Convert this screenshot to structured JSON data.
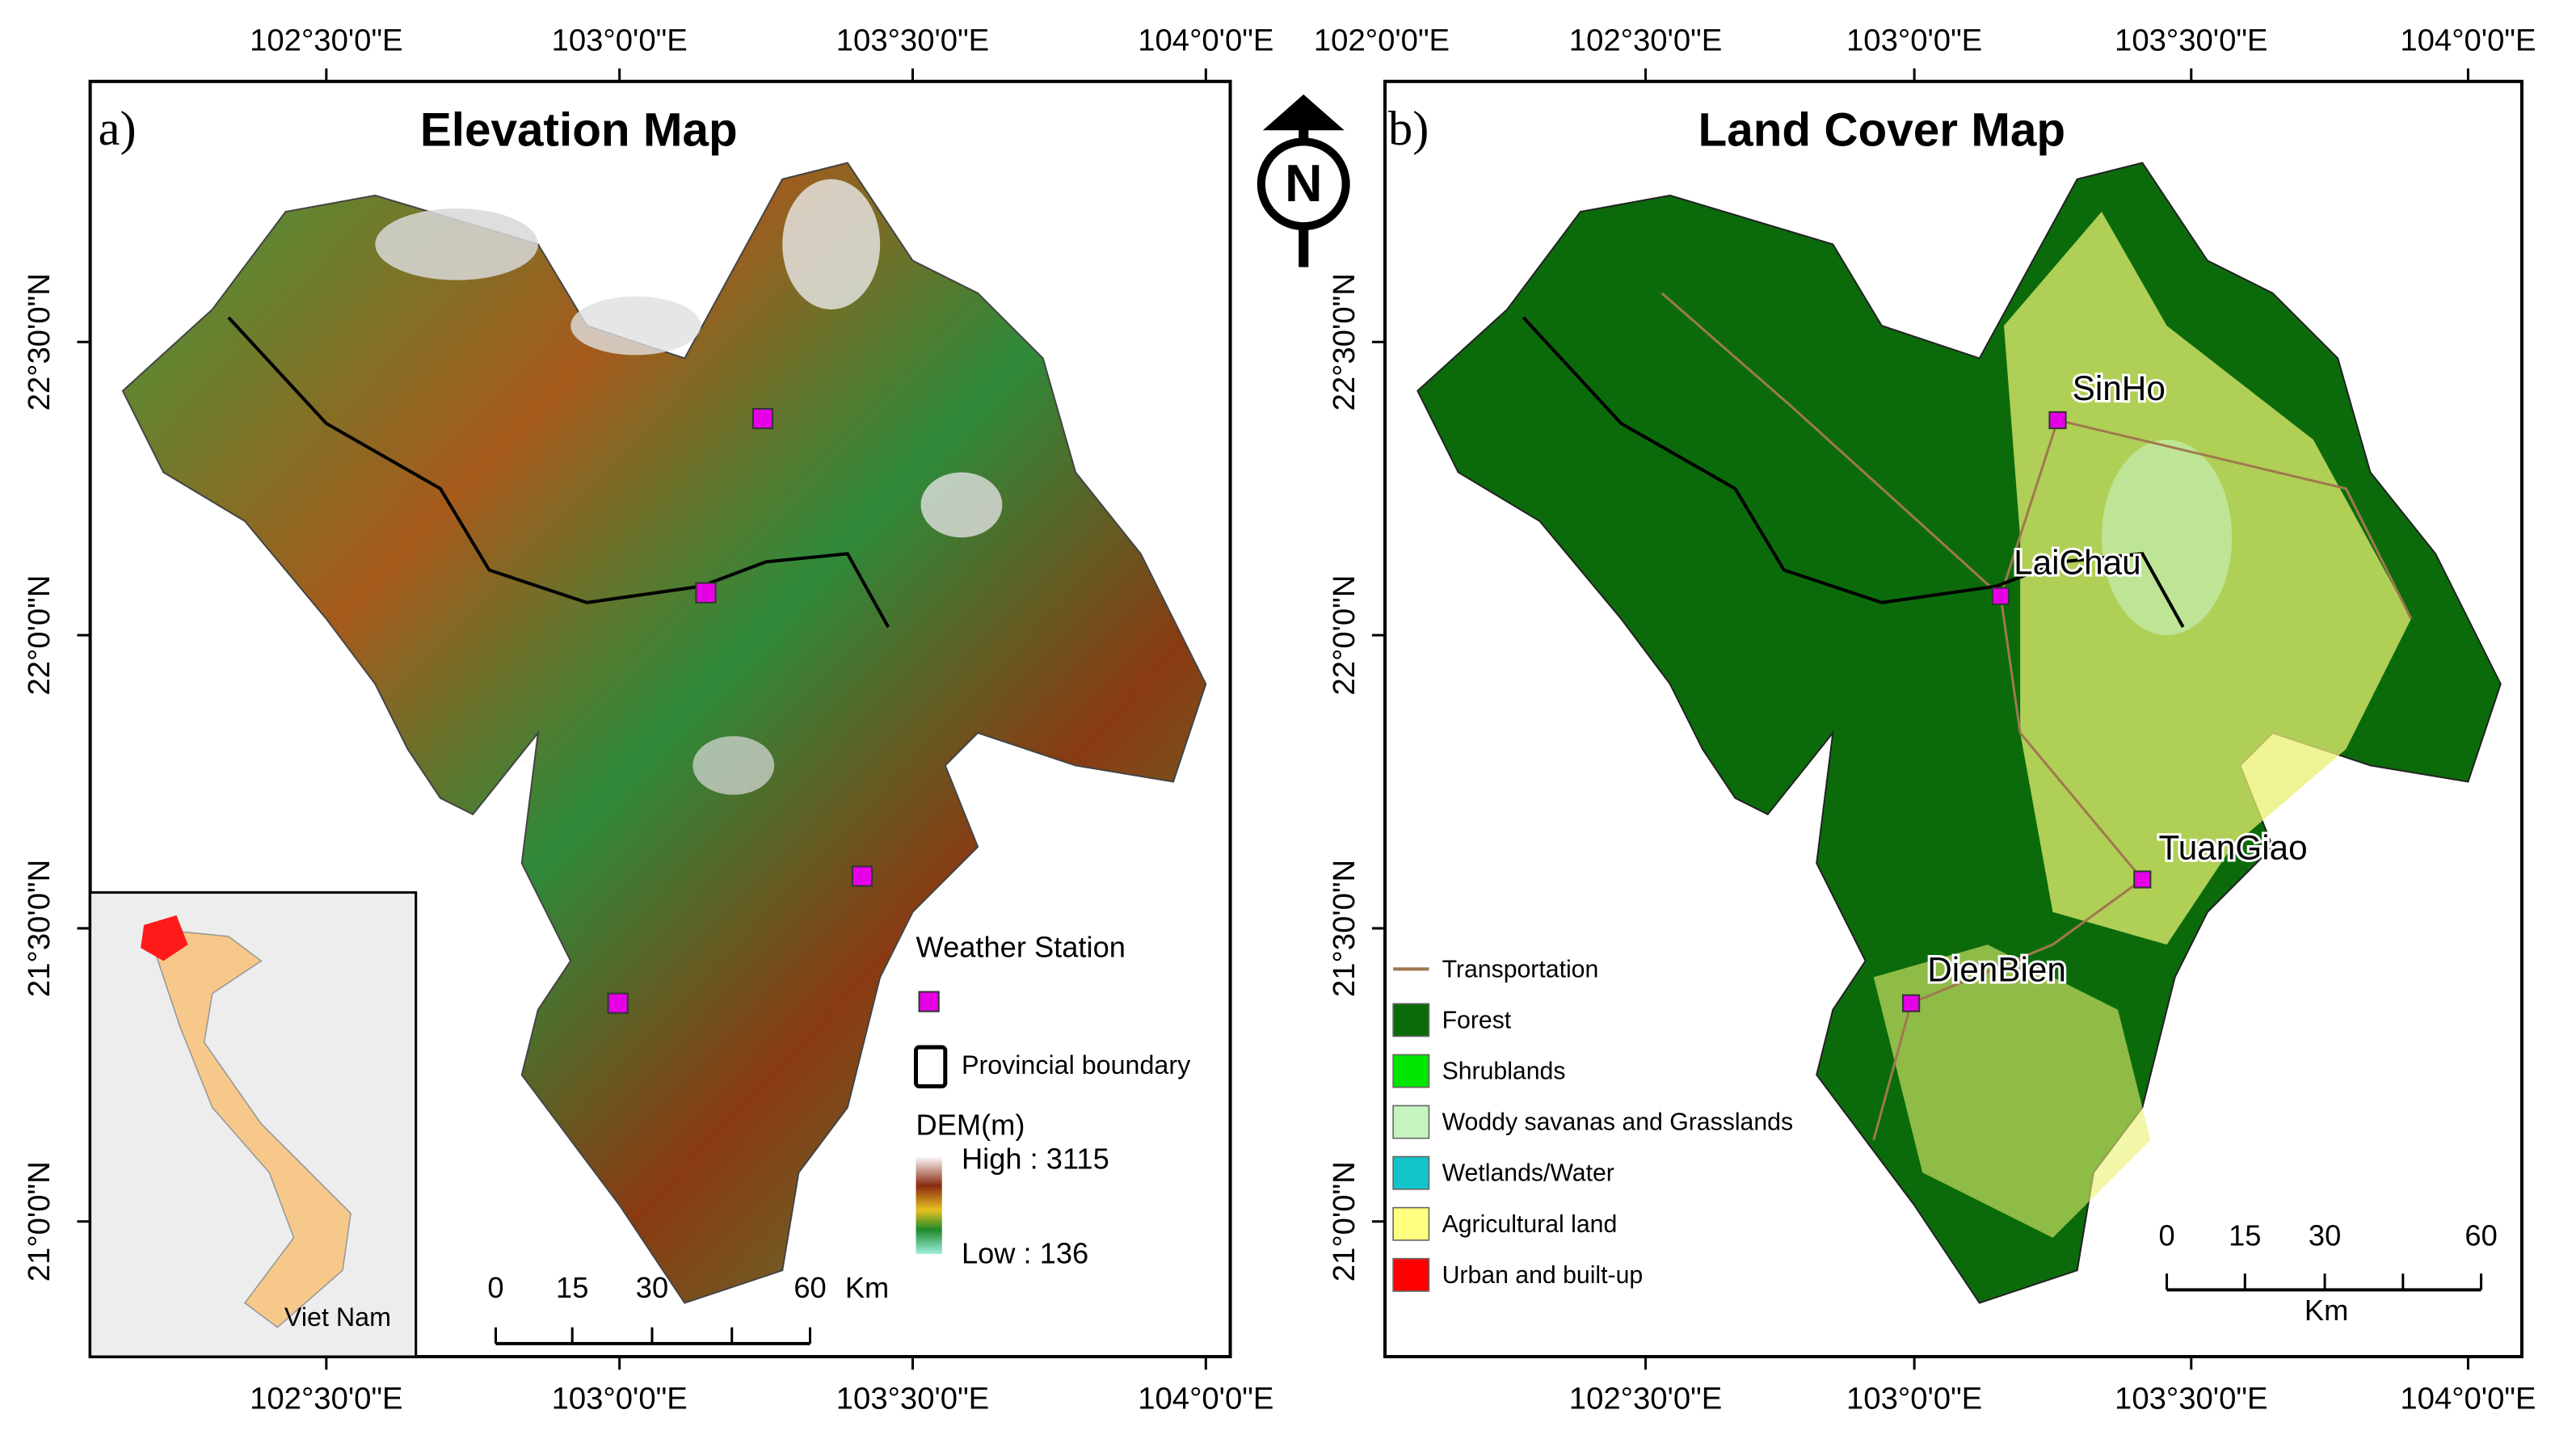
{
  "north": "N",
  "panels": [
    {
      "label": "a)",
      "title": "Elevation Map",
      "top_ticks": [
        "102°30'0\"E",
        "103°0'0\"E",
        "103°30'0\"E",
        "104°0'0\"E"
      ],
      "bottom_ticks": [
        "102°30'0\"E",
        "103°0'0\"E",
        "103°30'0\"E",
        "104°0'0\"E"
      ],
      "side_ticks": [
        "22°30'0\"N",
        "22°0'0\"N",
        "21°30'0\"N",
        "21°0'0\"N"
      ],
      "legend": {
        "station": "Weather Station",
        "boundary": "Provincial boundary",
        "dem_title": "DEM(m)",
        "high": "High : 3115",
        "low": "Low : 136"
      },
      "scale": {
        "ticks": [
          0,
          15,
          30,
          60
        ],
        "unit": "Km"
      },
      "inset_label": "Viet Nam"
    },
    {
      "label": "b)",
      "title": "Land Cover Map",
      "top_ticks": [
        "102°0'0\"E",
        "102°30'0\"E",
        "103°0'0\"E",
        "103°30'0\"E",
        "104°0'0\"E"
      ],
      "bottom_ticks": [
        "102°30'0\"E",
        "103°0'0\"E",
        "103°30'0\"E",
        "104°0'0\"E"
      ],
      "side_ticks": [
        "22°30'0\"N",
        "22°0'0\"N",
        "21°30'0\"N",
        "21°0'0\"N"
      ],
      "legend": [
        {
          "name": "Transportation",
          "color": "#a0784f"
        },
        {
          "name": "Forest",
          "color": "#0b6b0b"
        },
        {
          "name": "Shrublands",
          "color": "#00e600"
        },
        {
          "name": "Woddy savanas and Grasslands",
          "color": "#c6f4c0"
        },
        {
          "name": "Wetlands/Water",
          "color": "#12c4c8"
        },
        {
          "name": "Agricultural land",
          "color": "#ffff80"
        },
        {
          "name": "Urban and built-up",
          "color": "#ff0000"
        }
      ],
      "stations": [
        "SinHo",
        "LaiChau",
        "TuanGiao",
        "DienBien"
      ],
      "scale": {
        "ticks": [
          0,
          15,
          30,
          60
        ],
        "unit": "Km"
      }
    }
  ]
}
